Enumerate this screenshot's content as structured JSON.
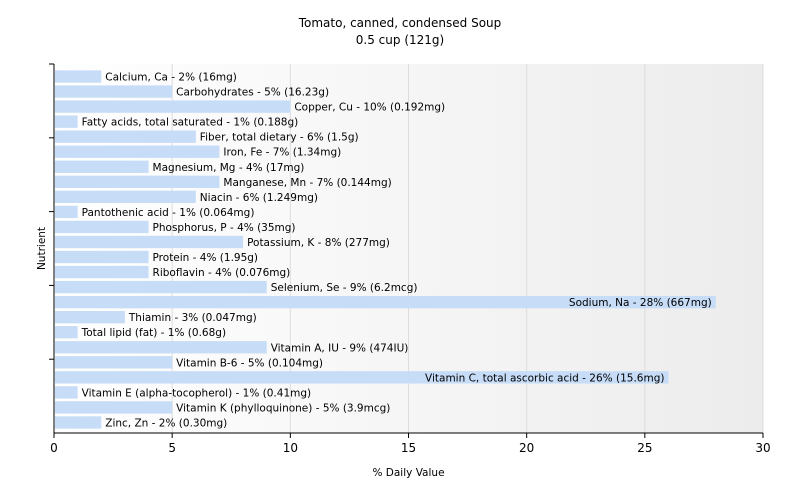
{
  "chart_data": {
    "type": "bar",
    "orientation": "horizontal",
    "title": "Tomato, canned, condensed Soup",
    "subtitle": "0.5 cup (121g)",
    "xlabel": "% Daily Value",
    "ylabel": "Nutrient",
    "xlim": [
      0,
      30
    ],
    "xticks": [
      0,
      5,
      10,
      15,
      20,
      25,
      30
    ],
    "grid": true,
    "bar_color": "#c6dcf7",
    "categories": [
      "Calcium, Ca",
      "Carbohydrates",
      "Copper, Cu",
      "Fatty acids, total saturated",
      "Fiber, total dietary",
      "Iron, Fe",
      "Magnesium, Mg",
      "Manganese, Mn",
      "Niacin",
      "Pantothenic acid",
      "Phosphorus, P",
      "Potassium, K",
      "Protein",
      "Riboflavin",
      "Selenium, Se",
      "Sodium, Na",
      "Thiamin",
      "Total lipid (fat)",
      "Vitamin A, IU",
      "Vitamin B-6",
      "Vitamin C, total ascorbic acid",
      "Vitamin E (alpha-tocopherol)",
      "Vitamin K (phylloquinone)",
      "Zinc, Zn"
    ],
    "values": [
      2,
      5,
      10,
      1,
      6,
      7,
      4,
      7,
      6,
      1,
      4,
      8,
      4,
      4,
      9,
      28,
      3,
      1,
      9,
      5,
      26,
      1,
      5,
      2
    ],
    "labels": [
      "Calcium, Ca - 2% (16mg)",
      "Carbohydrates - 5% (16.23g)",
      "Copper, Cu - 10% (0.192mg)",
      "Fatty acids, total saturated - 1% (0.188g)",
      "Fiber, total dietary - 6% (1.5g)",
      "Iron, Fe - 7% (1.34mg)",
      "Magnesium, Mg - 4% (17mg)",
      "Manganese, Mn - 7% (0.144mg)",
      "Niacin - 6% (1.249mg)",
      "Pantothenic acid - 1% (0.064mg)",
      "Phosphorus, P - 4% (35mg)",
      "Potassium, K - 8% (277mg)",
      "Protein - 4% (1.95g)",
      "Riboflavin - 4% (0.076mg)",
      "Selenium, Se - 9% (6.2mcg)",
      "Sodium, Na - 28% (667mg)",
      "Thiamin - 3% (0.047mg)",
      "Total lipid (fat) - 1% (0.68g)",
      "Vitamin A, IU - 9% (474IU)",
      "Vitamin B-6 - 5% (0.104mg)",
      "Vitamin C, total ascorbic acid - 26% (15.6mg)",
      "Vitamin E (alpha-tocopherol) - 1% (0.41mg)",
      "Vitamin K (phylloquinone) - 5% (3.9mcg)",
      "Zinc, Zn - 2% (0.30mg)"
    ]
  }
}
